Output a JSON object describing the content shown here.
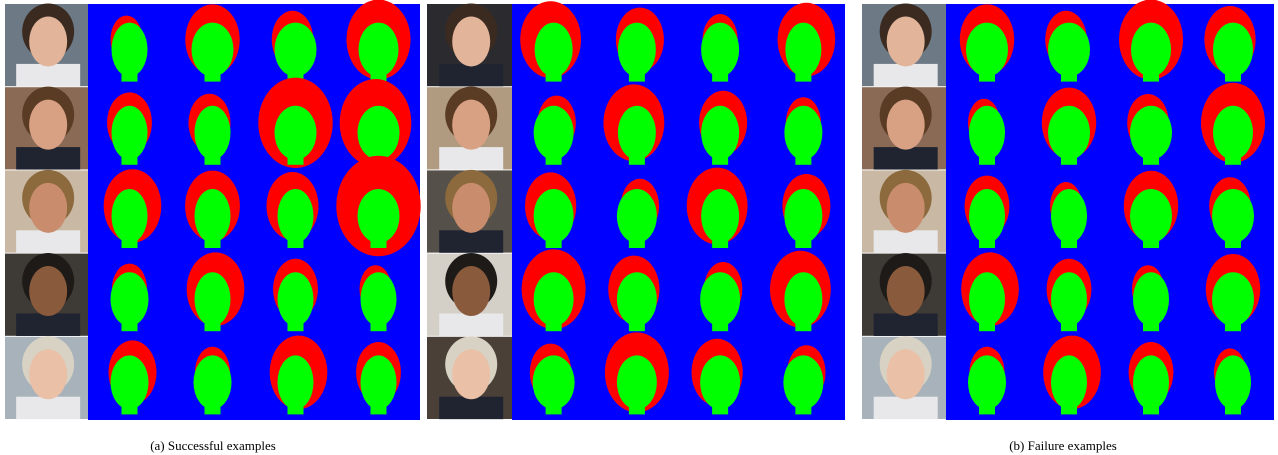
{
  "captions": [
    "(a)  Successful examples",
    "(b)  Failure examples"
  ]
}
